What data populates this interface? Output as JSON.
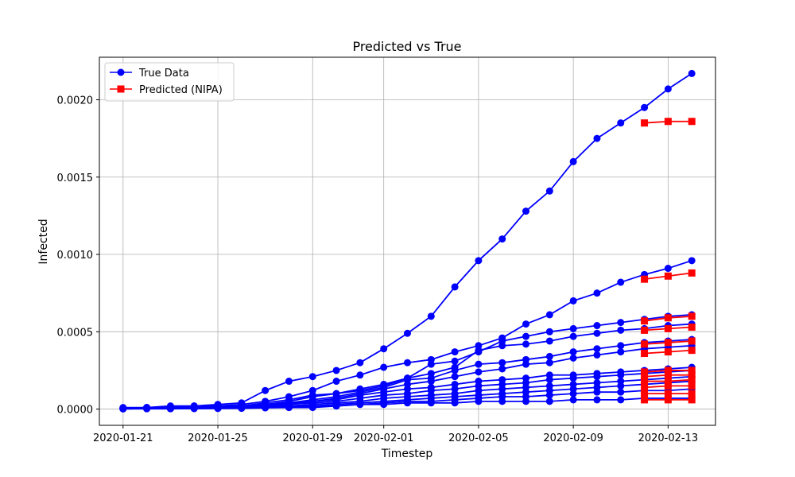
{
  "chart_data": {
    "type": "line",
    "title": "Predicted vs True",
    "xlabel": "Timestep",
    "ylabel": "Infected",
    "x": [
      "2020-01-21",
      "2020-01-22",
      "2020-01-23",
      "2020-01-24",
      "2020-01-25",
      "2020-01-26",
      "2020-01-27",
      "2020-01-28",
      "2020-01-29",
      "2020-01-30",
      "2020-01-31",
      "2020-02-01",
      "2020-02-02",
      "2020-02-03",
      "2020-02-04",
      "2020-02-05",
      "2020-02-06",
      "2020-02-07",
      "2020-02-08",
      "2020-02-09",
      "2020-02-10",
      "2020-02-11",
      "2020-02-12",
      "2020-02-13",
      "2020-02-14"
    ],
    "xlim": [
      "2020-01-20",
      "2020-02-15"
    ],
    "x_ticks": [
      "2020-01-21",
      "2020-01-25",
      "2020-01-29",
      "2020-02-01",
      "2020-02-05",
      "2020-02-09",
      "2020-02-13"
    ],
    "ylim": [
      -0.000105,
      0.002275
    ],
    "y_ticks": [
      0.0,
      0.0005,
      0.001,
      0.0015,
      0.002
    ],
    "y_tick_labels": [
      "0.0000",
      "0.0005",
      "0.0010",
      "0.0015",
      "0.0020"
    ],
    "grid": true,
    "legend_position": "top-left",
    "colors": {
      "true": "#0000ff",
      "predicted": "#ff0000"
    },
    "legend": [
      {
        "label": "True Data",
        "color": "#0000ff",
        "marker": "circle"
      },
      {
        "label": "Predicted (NIPA)",
        "color": "#ff0000",
        "marker": "square"
      }
    ],
    "true_series": [
      [
        1e-05,
        1e-05,
        2e-05,
        2e-05,
        3e-05,
        4e-05,
        0.00012,
        0.00018,
        0.00021,
        0.00025,
        0.0003,
        0.00039,
        0.00049,
        0.0006,
        0.00079,
        0.00096,
        0.0011,
        0.00128,
        0.00141,
        0.0016,
        0.00175,
        0.00185,
        0.00195,
        0.00207,
        0.00217
      ],
      [
        5e-06,
        1e-05,
        1e-05,
        2e-05,
        2e-05,
        3e-05,
        5e-05,
        8e-05,
        0.00012,
        0.00018,
        0.00022,
        0.00027,
        0.0003,
        0.00032,
        0.00037,
        0.00041,
        0.00046,
        0.00055,
        0.00061,
        0.0007,
        0.00075,
        0.00082,
        0.00087,
        0.00091,
        0.00096
      ],
      [
        5e-06,
        1e-05,
        1e-05,
        1e-05,
        2e-05,
        2e-05,
        4e-05,
        6e-05,
        9e-05,
        0.0001,
        0.00013,
        0.00016,
        0.0002,
        0.00029,
        0.00031,
        0.00037,
        0.00044,
        0.00047,
        0.0005,
        0.00052,
        0.00054,
        0.00056,
        0.00058,
        0.0006,
        0.00061
      ],
      [
        5e-06,
        8e-06,
        1e-05,
        1e-05,
        1e-05,
        2e-05,
        3e-05,
        5e-05,
        8e-05,
        0.0001,
        0.00012,
        0.00015,
        0.0002,
        0.00023,
        0.00027,
        0.00038,
        0.00041,
        0.00042,
        0.00044,
        0.00047,
        0.00049,
        0.00051,
        0.00052,
        0.00054,
        0.00055
      ],
      [
        5e-06,
        8e-06,
        1e-05,
        1e-05,
        1e-05,
        1e-05,
        3e-05,
        4e-05,
        6e-05,
        8e-05,
        0.00011,
        0.00014,
        0.00019,
        0.0002,
        0.00025,
        0.00029,
        0.0003,
        0.00032,
        0.00034,
        0.00037,
        0.00039,
        0.00041,
        0.00043,
        0.00044,
        0.00045
      ],
      [
        5e-06,
        5e-06,
        8e-06,
        1e-05,
        1e-05,
        1e-05,
        2e-05,
        4e-05,
        5e-05,
        7e-05,
        0.0001,
        0.00013,
        0.00016,
        0.00018,
        0.00021,
        0.00024,
        0.00026,
        0.00029,
        0.0003,
        0.00033,
        0.00035,
        0.00037,
        0.00039,
        0.0004,
        0.00041
      ],
      [
        3e-06,
        5e-06,
        5e-06,
        8e-06,
        1e-05,
        1e-05,
        2e-05,
        3e-05,
        5e-05,
        6e-05,
        9e-05,
        0.00011,
        0.00013,
        0.00014,
        0.00016,
        0.00018,
        0.00019,
        0.0002,
        0.00022,
        0.00022,
        0.00023,
        0.00024,
        0.00025,
        0.00026,
        0.00027
      ],
      [
        3e-06,
        5e-06,
        5e-06,
        6e-06,
        8e-06,
        1e-05,
        2e-05,
        3e-05,
        4e-05,
        5e-05,
        7e-05,
        9e-05,
        0.0001,
        0.00012,
        0.00013,
        0.00015,
        0.00016,
        0.00017,
        0.00019,
        0.0002,
        0.00021,
        0.00022,
        0.00023,
        0.00024,
        0.00025
      ],
      [
        3e-06,
        4e-06,
        5e-06,
        6e-06,
        7e-06,
        9e-06,
        2e-05,
        2e-05,
        3e-05,
        4e-05,
        5e-05,
        7e-05,
        8e-05,
        9e-05,
        0.0001,
        0.00012,
        0.00013,
        0.00014,
        0.00015,
        0.00016,
        0.00017,
        0.00018,
        0.00019,
        0.0002,
        0.00021
      ],
      [
        2e-06,
        3e-06,
        4e-06,
        5e-06,
        6e-06,
        8e-06,
        1e-05,
        2e-05,
        2e-05,
        3e-05,
        4e-05,
        5e-05,
        6e-05,
        7e-05,
        8e-05,
        9e-05,
        0.0001,
        0.00011,
        0.00012,
        0.00013,
        0.00014,
        0.00015,
        0.00016,
        0.00017,
        0.00018
      ],
      [
        2e-06,
        3e-06,
        3e-06,
        4e-06,
        5e-06,
        6e-06,
        1e-05,
        1e-05,
        2e-05,
        2e-05,
        3e-05,
        4e-05,
        5e-05,
        5e-05,
        6e-05,
        7e-05,
        8e-05,
        8e-05,
        9e-05,
        0.0001,
        0.00011,
        0.00011,
        0.00012,
        0.00012,
        0.00013
      ],
      [
        1e-06,
        2e-06,
        2e-06,
        3e-06,
        4e-06,
        5e-06,
        8e-06,
        1e-05,
        1e-05,
        2e-05,
        3e-05,
        3e-05,
        4e-05,
        4e-05,
        4e-05,
        5e-05,
        5e-05,
        5e-05,
        5e-05,
        6e-05,
        6e-05,
        6e-05,
        7e-05,
        7e-05,
        7e-05
      ]
    ],
    "predicted_x": [
      "2020-02-12",
      "2020-02-13",
      "2020-02-14"
    ],
    "predicted_series": [
      [
        0.00185,
        0.00186,
        0.00186
      ],
      [
        0.00084,
        0.00086,
        0.00088
      ],
      [
        0.00057,
        0.00059,
        0.0006
      ],
      [
        0.00051,
        0.00052,
        0.00053
      ],
      [
        0.00042,
        0.00043,
        0.00044
      ],
      [
        0.00036,
        0.00037,
        0.00038
      ],
      [
        0.00024,
        0.00025,
        0.00025
      ],
      [
        0.00021,
        0.00022,
        0.00022
      ],
      [
        0.00018,
        0.00018,
        0.00019
      ],
      [
        0.00014,
        0.00015,
        0.00015
      ],
      [
        0.0001,
        0.0001,
        0.0001
      ],
      [
        6e-05,
        6e-05,
        6e-05
      ]
    ]
  }
}
